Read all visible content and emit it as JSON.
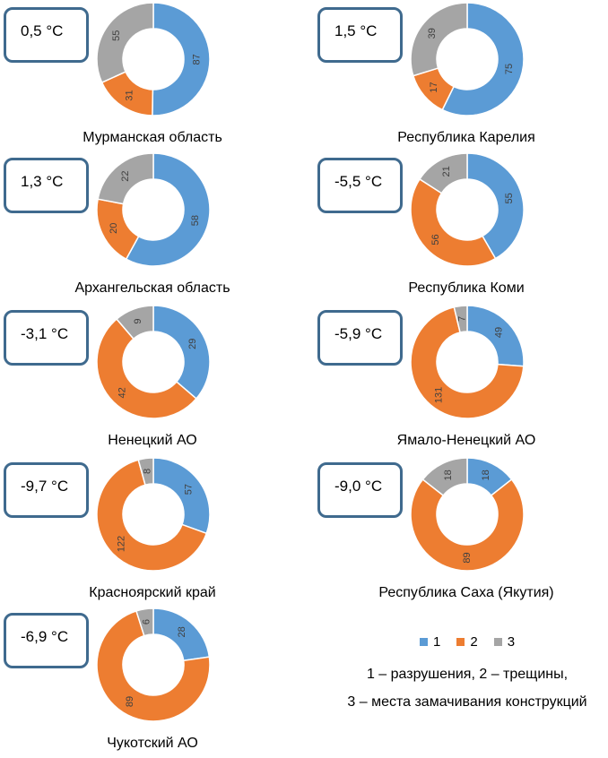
{
  "chart_data": [
    {
      "type": "pie",
      "title": "Мурманская область",
      "temperature": "0,5 °C",
      "categories": [
        "1",
        "2",
        "3"
      ],
      "values": [
        87,
        31,
        55
      ]
    },
    {
      "type": "pie",
      "title": "Республика Карелия",
      "temperature": "1,5 °C",
      "categories": [
        "1",
        "2",
        "3"
      ],
      "values": [
        75,
        17,
        39
      ]
    },
    {
      "type": "pie",
      "title": "Архангельская область",
      "temperature": "1,3 °C",
      "categories": [
        "1",
        "2",
        "3"
      ],
      "values": [
        58,
        20,
        22
      ]
    },
    {
      "type": "pie",
      "title": "Республика Коми",
      "temperature": "-5,5 °C",
      "categories": [
        "1",
        "2",
        "3"
      ],
      "values": [
        55,
        56,
        21
      ]
    },
    {
      "type": "pie",
      "title": "Ненецкий АО",
      "temperature": "-3,1 °C",
      "categories": [
        "1",
        "2",
        "3"
      ],
      "values": [
        29,
        42,
        9
      ]
    },
    {
      "type": "pie",
      "title": "Ямало-Ненецкий АО",
      "temperature": "-5,9 °C",
      "categories": [
        "1",
        "2",
        "3"
      ],
      "values": [
        49,
        131,
        7
      ]
    },
    {
      "type": "pie",
      "title": "Красноярский край",
      "temperature": "-9,7 °C",
      "categories": [
        "1",
        "2",
        "3"
      ],
      "values": [
        57,
        122,
        8
      ]
    },
    {
      "type": "pie",
      "title": "Республика Саха (Якутия)",
      "temperature": "-9,0 °C",
      "categories": [
        "1",
        "2",
        "3"
      ],
      "values": [
        18,
        89,
        18
      ]
    },
    {
      "type": "pie",
      "title": "Чукотский АО",
      "temperature": "-6,9 °C",
      "categories": [
        "1",
        "2",
        "3"
      ],
      "values": [
        28,
        89,
        6
      ]
    }
  ],
  "colors": [
    "#5b9bd5",
    "#ed7d31",
    "#a5a5a5"
  ],
  "legend": {
    "placement": "bottom-right",
    "items": [
      {
        "label": "1",
        "color": "#5b9bd5"
      },
      {
        "label": "2",
        "color": "#ed7d31"
      },
      {
        "label": "3",
        "color": "#a5a5a5"
      }
    ],
    "note_line1": "1 – разрушения, 2 – трещины,",
    "note_line2": "3 – места замачивания конструкций"
  }
}
